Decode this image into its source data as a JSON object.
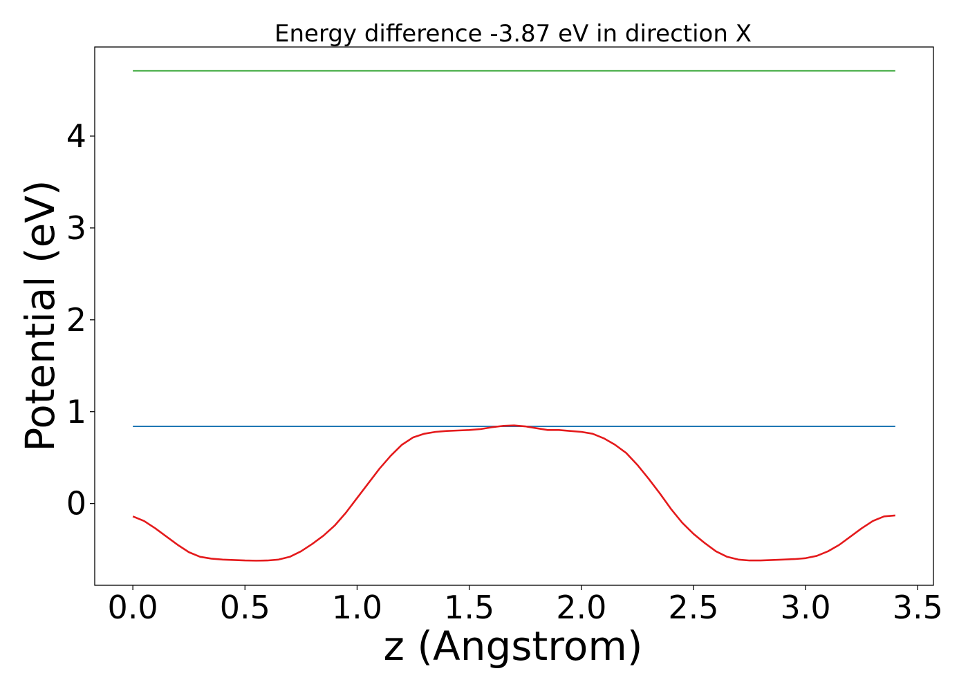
{
  "chart_data": {
    "type": "line",
    "title": "Energy difference -3.87 eV in direction X",
    "xlabel": "z (Angstrom)",
    "ylabel": "Potential (eV)",
    "xlim": [
      -0.17,
      3.57
    ],
    "ylim": [
      -0.89,
      4.97
    ],
    "xticks": [
      "0.0",
      "0.5",
      "1.0",
      "1.5",
      "2.0",
      "2.5",
      "3.0",
      "3.5"
    ],
    "yticks": [
      "0",
      "1",
      "2",
      "3",
      "4"
    ],
    "grid": false,
    "series": [
      {
        "color": "#2ca02c",
        "x": [
          0.0,
          3.4
        ],
        "y": [
          4.71,
          4.71
        ]
      },
      {
        "color": "#1f77b4",
        "x": [
          0.0,
          3.4
        ],
        "y": [
          0.84,
          0.84
        ]
      },
      {
        "color": "#e41a1c",
        "x": [
          0.0,
          0.05,
          0.1,
          0.15,
          0.2,
          0.25,
          0.3,
          0.35,
          0.4,
          0.45,
          0.5,
          0.55,
          0.6,
          0.65,
          0.7,
          0.75,
          0.8,
          0.85,
          0.9,
          0.95,
          1.0,
          1.05,
          1.1,
          1.15,
          1.2,
          1.25,
          1.3,
          1.35,
          1.4,
          1.45,
          1.5,
          1.55,
          1.6,
          1.65,
          1.7,
          1.75,
          1.8,
          1.85,
          1.9,
          1.95,
          2.0,
          2.05,
          2.1,
          2.15,
          2.2,
          2.25,
          2.3,
          2.35,
          2.4,
          2.45,
          2.5,
          2.55,
          2.6,
          2.65,
          2.7,
          2.75,
          2.8,
          2.85,
          2.9,
          2.95,
          3.0,
          3.05,
          3.1,
          3.15,
          3.2,
          3.25,
          3.3,
          3.35,
          3.4
        ],
        "y": [
          -0.14,
          -0.19,
          -0.27,
          -0.36,
          -0.45,
          -0.53,
          -0.58,
          -0.6,
          -0.61,
          -0.615,
          -0.62,
          -0.622,
          -0.62,
          -0.61,
          -0.58,
          -0.52,
          -0.44,
          -0.35,
          -0.24,
          -0.1,
          0.06,
          0.22,
          0.38,
          0.52,
          0.64,
          0.72,
          0.76,
          0.78,
          0.79,
          0.795,
          0.8,
          0.81,
          0.83,
          0.845,
          0.85,
          0.84,
          0.82,
          0.8,
          0.8,
          0.79,
          0.78,
          0.76,
          0.71,
          0.64,
          0.55,
          0.42,
          0.27,
          0.11,
          -0.06,
          -0.21,
          -0.33,
          -0.43,
          -0.52,
          -0.58,
          -0.61,
          -0.62,
          -0.62,
          -0.615,
          -0.61,
          -0.605,
          -0.595,
          -0.57,
          -0.52,
          -0.45,
          -0.36,
          -0.27,
          -0.19,
          -0.14,
          -0.13
        ]
      }
    ]
  }
}
